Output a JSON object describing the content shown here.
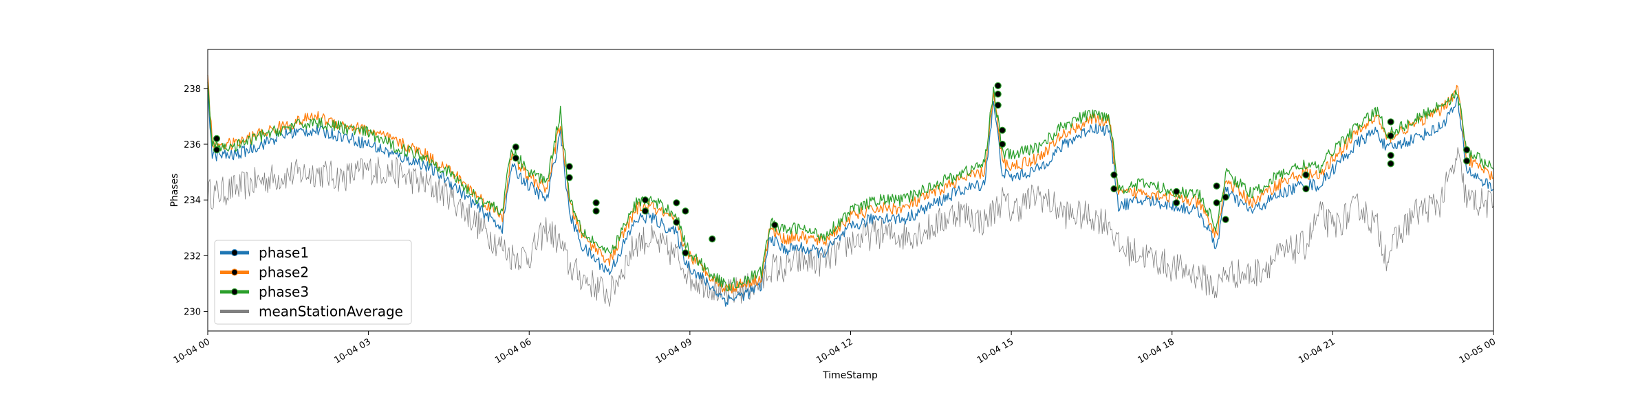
{
  "chart_data": {
    "type": "line",
    "title": "",
    "xlabel": "TimeStamp",
    "ylabel": "Phases",
    "xlim": [
      "2023-10-04 00:00",
      "2023-10-05 00:00"
    ],
    "ylim": [
      229.3,
      239.4
    ],
    "x_tick_labels": [
      "10-04 00",
      "10-04 03",
      "10-04 06",
      "10-04 09",
      "10-04 12",
      "10-04 15",
      "10-04 18",
      "10-04 21",
      "10-05 00"
    ],
    "x_ticks": [
      "2023-10-04 00:00",
      "2023-10-04 03:00",
      "2023-10-04 06:00",
      "2023-10-04 09:00",
      "2023-10-04 12:00",
      "2023-10-04 15:00",
      "2023-10-04 18:00",
      "2023-10-04 21:00",
      "2023-10-05 00:00"
    ],
    "y_ticks": [
      230,
      232,
      234,
      236,
      238
    ],
    "y_tick_labels": [
      "230",
      "232",
      "234",
      "236",
      "238"
    ],
    "grid": false,
    "legend_position": "lower-left",
    "x": [
      "00:00",
      "00:05",
      "00:30",
      "01:00",
      "01:30",
      "02:00",
      "02:30",
      "03:00",
      "03:30",
      "04:00",
      "04:30",
      "05:00",
      "05:30",
      "05:40",
      "06:00",
      "06:20",
      "06:35",
      "06:45",
      "07:00",
      "07:30",
      "08:00",
      "08:15",
      "08:45",
      "08:55",
      "09:00",
      "09:20",
      "09:40",
      "10:00",
      "10:20",
      "10:30",
      "10:45",
      "11:00",
      "11:30",
      "12:00",
      "12:30",
      "13:00",
      "13:30",
      "14:00",
      "14:30",
      "14:40",
      "14:50",
      "15:00",
      "15:30",
      "16:00",
      "16:30",
      "16:50",
      "17:00",
      "17:30",
      "18:00",
      "18:30",
      "18:50",
      "19:00",
      "19:30",
      "20:00",
      "20:30",
      "20:45",
      "21:00",
      "21:30",
      "21:50",
      "22:00",
      "22:30",
      "23:00",
      "23:20",
      "23:30",
      "24:00"
    ],
    "series": [
      {
        "name": "phase1",
        "color": "#1f77b4",
        "values": [
          238.0,
          235.6,
          235.6,
          236.0,
          236.4,
          236.5,
          236.3,
          236.0,
          235.6,
          235.3,
          234.7,
          233.8,
          233.0,
          235.2,
          234.5,
          234.0,
          236.5,
          233.5,
          232.3,
          231.4,
          233.3,
          233.4,
          232.8,
          231.8,
          231.6,
          231.0,
          230.4,
          230.6,
          230.9,
          232.7,
          232.2,
          232.3,
          232.1,
          233.0,
          233.4,
          233.3,
          233.8,
          234.3,
          234.6,
          237.5,
          235.0,
          234.8,
          235.1,
          236.0,
          236.6,
          236.5,
          233.8,
          234.0,
          233.8,
          233.6,
          232.3,
          234.3,
          233.6,
          234.2,
          234.6,
          234.5,
          235.1,
          236.1,
          236.5,
          235.8,
          236.2,
          236.6,
          237.5,
          235.1,
          234.4
        ]
      },
      {
        "name": "phase2",
        "color": "#ff7f0e",
        "values": [
          238.5,
          236.0,
          236.0,
          236.4,
          236.7,
          237.0,
          236.7,
          236.5,
          236.1,
          235.7,
          235.1,
          234.2,
          233.4,
          235.6,
          234.8,
          234.4,
          236.8,
          233.9,
          232.7,
          231.8,
          233.7,
          233.8,
          233.2,
          232.2,
          232.0,
          231.4,
          230.8,
          231.0,
          231.2,
          233.0,
          232.6,
          232.7,
          232.5,
          233.4,
          233.7,
          233.7,
          234.2,
          234.7,
          235.0,
          237.8,
          235.4,
          235.2,
          235.5,
          236.4,
          236.9,
          236.8,
          234.2,
          234.3,
          234.1,
          233.9,
          232.7,
          234.7,
          233.9,
          234.6,
          235.0,
          234.8,
          235.5,
          236.5,
          237.0,
          236.2,
          236.7,
          237.2,
          238.0,
          235.5,
          234.8
        ]
      },
      {
        "name": "phase3",
        "color": "#2ca02c",
        "values": [
          238.3,
          235.9,
          235.9,
          236.3,
          236.6,
          236.8,
          236.6,
          236.4,
          235.9,
          235.6,
          235.0,
          234.1,
          233.6,
          235.8,
          235.0,
          234.7,
          237.2,
          234.1,
          232.9,
          232.0,
          233.9,
          234.0,
          233.5,
          232.4,
          232.1,
          231.5,
          230.9,
          231.1,
          231.4,
          233.2,
          232.9,
          233.0,
          232.7,
          233.6,
          234.0,
          234.0,
          234.5,
          234.9,
          235.3,
          238.0,
          235.7,
          235.6,
          235.9,
          236.7,
          237.1,
          237.0,
          234.4,
          234.6,
          234.3,
          234.2,
          233.0,
          235.0,
          234.2,
          234.9,
          235.3,
          235.1,
          235.8,
          236.7,
          237.2,
          236.4,
          236.8,
          237.4,
          237.8,
          235.8,
          235.1
        ]
      },
      {
        "name": "meanStationAverage",
        "color": "#808080",
        "values": [
          234.3,
          234.2,
          234.4,
          234.7,
          234.9,
          235.0,
          234.8,
          235.1,
          235.0,
          234.6,
          234.2,
          233.2,
          232.3,
          232.0,
          232.0,
          233.0,
          232.4,
          231.6,
          231.2,
          230.6,
          232.5,
          232.6,
          232.0,
          231.6,
          231.2,
          231.0,
          230.6,
          230.8,
          231.0,
          231.6,
          231.5,
          231.8,
          231.8,
          232.5,
          232.8,
          232.7,
          233.0,
          233.6,
          233.2,
          233.6,
          234.0,
          233.6,
          234.2,
          233.5,
          233.4,
          233.2,
          232.3,
          232.0,
          231.6,
          231.3,
          230.8,
          231.4,
          231.3,
          232.0,
          232.4,
          233.5,
          233.0,
          233.8,
          233.0,
          232.0,
          233.5,
          233.9,
          235.5,
          234.0,
          233.8
        ]
      }
    ],
    "anomaly_markers": [
      {
        "x": "00:10",
        "y": 236.2
      },
      {
        "x": "00:10",
        "y": 235.8
      },
      {
        "x": "05:45",
        "y": 235.9
      },
      {
        "x": "05:45",
        "y": 235.5
      },
      {
        "x": "06:45",
        "y": 235.2
      },
      {
        "x": "06:45",
        "y": 234.8
      },
      {
        "x": "07:15",
        "y": 233.9
      },
      {
        "x": "07:15",
        "y": 233.6
      },
      {
        "x": "08:10",
        "y": 234.0
      },
      {
        "x": "08:10",
        "y": 233.6
      },
      {
        "x": "08:45",
        "y": 233.9
      },
      {
        "x": "08:45",
        "y": 233.2
      },
      {
        "x": "08:55",
        "y": 233.6
      },
      {
        "x": "08:55",
        "y": 232.1
      },
      {
        "x": "09:25",
        "y": 232.6
      },
      {
        "x": "10:35",
        "y": 233.1
      },
      {
        "x": "14:45",
        "y": 238.1
      },
      {
        "x": "14:45",
        "y": 237.8
      },
      {
        "x": "14:45",
        "y": 237.4
      },
      {
        "x": "14:50",
        "y": 236.5
      },
      {
        "x": "14:50",
        "y": 236.0
      },
      {
        "x": "16:55",
        "y": 234.9
      },
      {
        "x": "16:55",
        "y": 234.4
      },
      {
        "x": "18:05",
        "y": 234.3
      },
      {
        "x": "18:05",
        "y": 233.9
      },
      {
        "x": "18:50",
        "y": 234.5
      },
      {
        "x": "18:50",
        "y": 233.9
      },
      {
        "x": "19:00",
        "y": 234.1
      },
      {
        "x": "19:00",
        "y": 233.3
      },
      {
        "x": "20:30",
        "y": 234.9
      },
      {
        "x": "20:30",
        "y": 234.4
      },
      {
        "x": "22:05",
        "y": 236.8
      },
      {
        "x": "22:05",
        "y": 236.3
      },
      {
        "x": "22:05",
        "y": 235.6
      },
      {
        "x": "22:05",
        "y": 235.3
      },
      {
        "x": "23:30",
        "y": 235.8
      },
      {
        "x": "23:30",
        "y": 235.4
      }
    ],
    "legend": [
      {
        "label": "phase1",
        "color": "#1f77b4",
        "marker": true
      },
      {
        "label": "phase2",
        "color": "#ff7f0e",
        "marker": true
      },
      {
        "label": "phase3",
        "color": "#2ca02c",
        "marker": true
      },
      {
        "label": "meanStationAverage",
        "color": "#808080",
        "marker": false
      }
    ]
  }
}
